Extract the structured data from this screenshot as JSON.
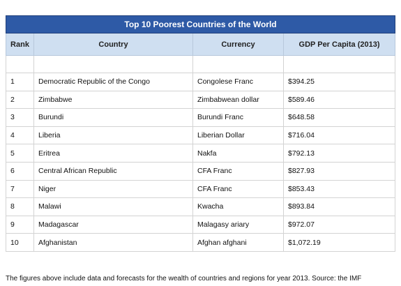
{
  "table": {
    "title": "Top 10 Poorest Countries of the World",
    "headers": [
      "Rank",
      "Country",
      "Currency",
      "GDP Per Capita (2013)"
    ],
    "rows": [
      {
        "rank": "1",
        "country": "Democratic Republic of the Congo",
        "currency": "Congolese Franc",
        "gdp": "$394.25"
      },
      {
        "rank": "2",
        "country": "Zimbabwe",
        "currency": "Zimbabwean dollar",
        "gdp": "$589.46"
      },
      {
        "rank": "3",
        "country": "Burundi",
        "currency": "Burundi Franc",
        "gdp": "$648.58"
      },
      {
        "rank": "4",
        "country": "Liberia",
        "currency": "Liberian Dollar",
        "gdp": "$716.04"
      },
      {
        "rank": "5",
        "country": "Eritrea",
        "currency": "Nakfa",
        "gdp": "$792.13"
      },
      {
        "rank": "6",
        "country": "Central African Republic",
        "currency": "CFA Franc",
        "gdp": "$827.93"
      },
      {
        "rank": "7",
        "country": "Niger",
        "currency": "CFA Franc",
        "gdp": "$853.43"
      },
      {
        "rank": "8",
        "country": "Malawi",
        "currency": "Kwacha",
        "gdp": "$893.84"
      },
      {
        "rank": "9",
        "country": "Madagascar",
        "currency": "Malagasy ariary",
        "gdp": "$972.07"
      },
      {
        "rank": "10",
        "country": "Afghanistan",
        "currency": "Afghan afghani",
        "gdp": "$1,072.19"
      }
    ]
  },
  "footnote": "The figures above include data and forecasts for the wealth of countries and regions for year 2013. Source: the IMF"
}
